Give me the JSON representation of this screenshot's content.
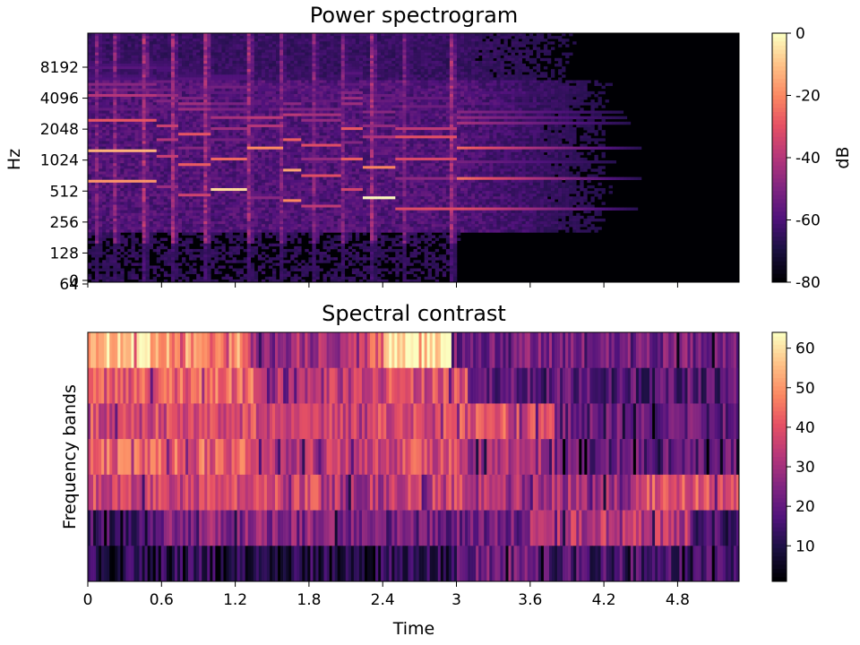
{
  "chart_data": [
    {
      "type": "heatmap",
      "title": "Power spectrogram",
      "xlabel": "",
      "ylabel": "Hz",
      "y_scale": "log2",
      "ytick_labels": [
        "0",
        "64",
        "128",
        "256",
        "512",
        "1024",
        "2048",
        "4096",
        "8192"
      ],
      "xlim": [
        0,
        5.3
      ],
      "xticks": [
        0,
        0.6,
        1.2,
        1.8,
        2.4,
        3.0,
        3.6,
        4.2,
        4.8
      ],
      "colormap": "magma",
      "colorbar": {
        "label": "dB",
        "range": [
          -80,
          0
        ],
        "tick_labels": [
          "0",
          "-20",
          "-40",
          "-60",
          "-80"
        ]
      },
      "melody_hz": [
        {
          "t_start": 0.0,
          "t_end": 0.55,
          "hz": 620
        },
        {
          "t_start": 0.55,
          "t_end": 0.75,
          "hz": 540
        },
        {
          "t_start": 0.75,
          "t_end": 1.0,
          "hz": 450
        },
        {
          "t_start": 1.0,
          "t_end": 1.3,
          "hz": 520
        },
        {
          "t_start": 1.3,
          "t_end": 1.6,
          "hz": 440
        },
        {
          "t_start": 1.6,
          "t_end": 1.75,
          "hz": 400
        },
        {
          "t_start": 1.75,
          "t_end": 2.05,
          "hz": 350
        },
        {
          "t_start": 2.05,
          "t_end": 2.25,
          "hz": 510
        },
        {
          "t_start": 2.25,
          "t_end": 2.5,
          "hz": 430
        },
        {
          "t_start": 2.5,
          "t_end": 3.0,
          "hz": 340
        },
        {
          "t_start": 3.0,
          "t_end": 4.5,
          "hz": 330
        }
      ]
    },
    {
      "type": "heatmap",
      "title": "Spectral contrast",
      "xlabel": "Time",
      "ylabel": "Frequency bands",
      "xlim": [
        0,
        5.3
      ],
      "xticks": [
        0,
        0.6,
        1.2,
        1.8,
        2.4,
        3.0,
        3.6,
        4.2,
        4.8
      ],
      "xtick_labels": [
        "0",
        "0.6",
        "1.2",
        "1.8",
        "2.4",
        "3",
        "3.6",
        "4.2",
        "4.8"
      ],
      "n_bands": 7,
      "colormap": "magma",
      "colorbar": {
        "range": [
          1,
          64
        ],
        "tick_labels": [
          "60",
          "50",
          "40",
          "30",
          "20",
          "10"
        ]
      },
      "band_segments": [
        [
          [
            0,
            0.5,
            57
          ],
          [
            0.5,
            1.3,
            50
          ],
          [
            1.3,
            2.2,
            30
          ],
          [
            2.2,
            2.4,
            45
          ],
          [
            2.4,
            2.95,
            60
          ],
          [
            2.95,
            5.3,
            22
          ]
        ],
        [
          [
            0,
            0.6,
            40
          ],
          [
            0.6,
            1.4,
            43
          ],
          [
            1.4,
            2.3,
            35
          ],
          [
            2.3,
            3.1,
            38
          ],
          [
            3.1,
            5.3,
            18
          ]
        ],
        [
          [
            0,
            1.5,
            38
          ],
          [
            1.5,
            2.3,
            34
          ],
          [
            2.3,
            3.0,
            38
          ],
          [
            3.0,
            3.8,
            40
          ],
          [
            3.8,
            5.3,
            20
          ]
        ],
        [
          [
            0,
            1.4,
            42
          ],
          [
            1.4,
            2.3,
            34
          ],
          [
            2.3,
            3.1,
            38
          ],
          [
            3.1,
            3.8,
            30
          ],
          [
            3.8,
            5.3,
            20
          ]
        ],
        [
          [
            0,
            1.9,
            37
          ],
          [
            1.9,
            2.6,
            32
          ],
          [
            2.6,
            3.1,
            35
          ],
          [
            3.1,
            4.5,
            30
          ],
          [
            4.5,
            5.3,
            40
          ]
        ],
        [
          [
            0,
            0.6,
            14
          ],
          [
            0.6,
            2.3,
            25
          ],
          [
            2.3,
            3.6,
            22
          ],
          [
            3.6,
            4.9,
            33
          ],
          [
            4.9,
            5.3,
            14
          ]
        ],
        [
          [
            0,
            3.0,
            10
          ],
          [
            3.0,
            3.6,
            22
          ],
          [
            3.6,
            5.3,
            16
          ]
        ]
      ]
    }
  ]
}
